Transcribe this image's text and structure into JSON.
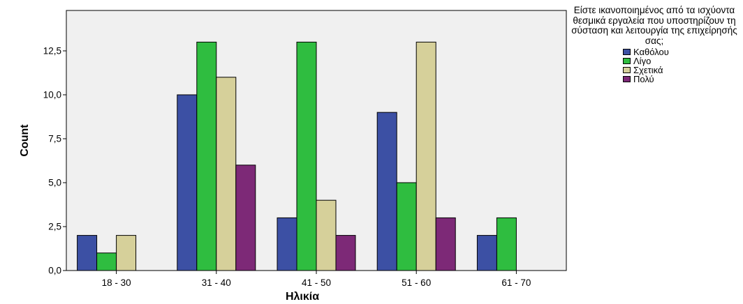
{
  "chart_data": {
    "type": "bar",
    "xlabel": "Ηλικία",
    "ylabel": "Count",
    "categories": [
      "18 - 30",
      "31 - 40",
      "41 - 50",
      "51 - 60",
      "61 - 70"
    ],
    "ylim": [
      0,
      14.8
    ],
    "yticks": [
      "0,0",
      "2,5",
      "5,0",
      "7,5",
      "10,0",
      "12,5"
    ],
    "ytick_values": [
      0,
      2.5,
      5,
      7.5,
      10,
      12.5
    ],
    "legend_title": "Είστε ικανοποιημένος από τα ισχύοντα θεσμικά εργαλεία που υποστηρίζουν τη σύσταση και λειτουργία της επιχείρησής σας;",
    "legend_position": "right",
    "grid": false,
    "series": [
      {
        "name": "Καθόλου",
        "color": "#3c50a4",
        "values": [
          2,
          10,
          3,
          9,
          2
        ]
      },
      {
        "name": "Λίγο",
        "color": "#2fbd40",
        "values": [
          1,
          13,
          13,
          5,
          3
        ]
      },
      {
        "name": "Σχετικά",
        "color": "#d6d09a",
        "values": [
          2,
          11,
          4,
          13,
          0
        ]
      },
      {
        "name": "Πολύ",
        "color": "#7d2977",
        "values": [
          0,
          6,
          2,
          3,
          0
        ]
      }
    ]
  }
}
